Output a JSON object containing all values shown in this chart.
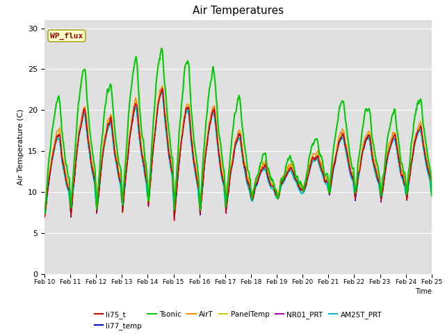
{
  "title": "Air Temperatures",
  "xlabel": "Time",
  "ylabel": "Air Temperature (C)",
  "ylim": [
    0,
    31
  ],
  "xlim_days": 15,
  "y_ticks": [
    0,
    5,
    10,
    15,
    20,
    25,
    30
  ],
  "bg_color": "#e0e0e0",
  "fig_color": "#ffffff",
  "series": {
    "li75_t": {
      "color": "#cc0000",
      "lw": 1.0,
      "zorder": 5
    },
    "li77_temp": {
      "color": "#0000cc",
      "lw": 1.0,
      "zorder": 4
    },
    "Tsonic": {
      "color": "#00cc00",
      "lw": 1.5,
      "zorder": 6
    },
    "AirT": {
      "color": "#ff8800",
      "lw": 1.0,
      "zorder": 5
    },
    "PanelTemp": {
      "color": "#cccc00",
      "lw": 1.0,
      "zorder": 5
    },
    "NR01_PRT": {
      "color": "#aa00aa",
      "lw": 1.0,
      "zorder": 5
    },
    "AM25T_PRT": {
      "color": "#00bbbb",
      "lw": 1.5,
      "zorder": 3
    }
  },
  "wp_flux_box": {
    "text": "WP_flux",
    "facecolor": "#ffffcc",
    "edgecolor": "#999900",
    "textcolor": "#990000"
  },
  "legend_row1": [
    "li75_t",
    "li77_temp",
    "Tsonic",
    "AirT",
    "PanelTemp",
    "NR01_PRT"
  ],
  "legend_row1_colors": [
    "#cc0000",
    "#0000cc",
    "#00cc00",
    "#ff8800",
    "#cccc00",
    "#aa00aa"
  ],
  "legend_row2": [
    "AM25T_PRT"
  ],
  "legend_row2_colors": [
    "#00bbbb"
  ]
}
